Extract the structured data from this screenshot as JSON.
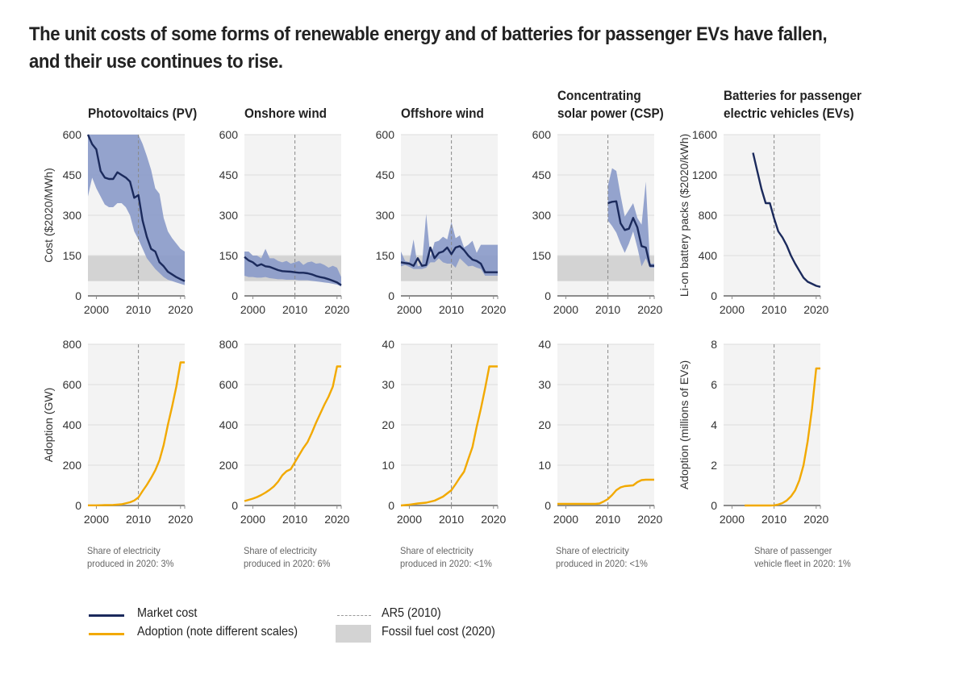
{
  "title_line1": "The unit costs of some forms of renewable energy and of batteries for passenger EVs have fallen,",
  "title_line2": "and their use continues to rise.",
  "colors": {
    "market_cost": "#1b2a5c",
    "market_cost_band": "#8a9ac9",
    "adoption": "#f2a900",
    "fossil_band": "#d3d3d3",
    "plot_bg": "#f3f3f3",
    "gridline": "#dcdcdc",
    "baseline": "#8c8c8c",
    "ar5_line": "#888888"
  },
  "legend": {
    "market_cost": "Market cost",
    "adoption": "Adoption (note different scales)",
    "ar5": "AR5 (2010)",
    "fossil": "Fossil fuel cost (2020)"
  },
  "chart_data": [
    {
      "id": "pv-cost",
      "type": "line",
      "panel": "Photovoltaics (PV)",
      "row": "cost",
      "title_lines": [
        "Photovoltaics (PV)"
      ],
      "ylabel": "Cost ($2020/MWh)",
      "ylim": [
        0,
        600
      ],
      "yticks": [
        0,
        150,
        300,
        450,
        600
      ],
      "xlim": [
        1998,
        2021
      ],
      "xticks": [
        2000,
        2010,
        2020
      ],
      "ar5_year": 2010,
      "fossil_band": [
        55,
        150
      ],
      "series": {
        "name": "Market cost",
        "x": [
          1998,
          1999,
          2000,
          2001,
          2002,
          2003,
          2004,
          2005,
          2006,
          2007,
          2008,
          2009,
          2010,
          2011,
          2012,
          2013,
          2014,
          2015,
          2016,
          2017,
          2018,
          2019,
          2020,
          2021
        ],
        "y": [
          600,
          565,
          545,
          465,
          440,
          435,
          435,
          460,
          450,
          440,
          425,
          365,
          375,
          280,
          220,
          175,
          165,
          125,
          110,
          90,
          80,
          70,
          62,
          55
        ]
      },
      "band": {
        "x": [
          1998,
          1999,
          2000,
          2001,
          2002,
          2003,
          2004,
          2005,
          2006,
          2007,
          2008,
          2009,
          2010,
          2011,
          2012,
          2013,
          2014,
          2015,
          2016,
          2017,
          2018,
          2019,
          2020,
          2021
        ],
        "low": [
          370,
          440,
          400,
          370,
          340,
          330,
          330,
          345,
          345,
          330,
          300,
          240,
          210,
          175,
          140,
          120,
          100,
          85,
          70,
          60,
          55,
          50,
          45,
          40
        ],
        "high": [
          600,
          600,
          600,
          600,
          600,
          600,
          600,
          600,
          600,
          600,
          600,
          600,
          600,
          565,
          520,
          470,
          400,
          380,
          290,
          240,
          215,
          195,
          175,
          165
        ]
      }
    },
    {
      "id": "onshore-cost",
      "type": "line",
      "panel": "Onshore wind",
      "row": "cost",
      "title_lines": [
        "Onshore wind"
      ],
      "ylabel": "",
      "ylim": [
        0,
        600
      ],
      "yticks": [
        0,
        150,
        300,
        450,
        600
      ],
      "xlim": [
        1998,
        2021
      ],
      "xticks": [
        2000,
        2010,
        2020
      ],
      "ar5_year": 2010,
      "fossil_band": [
        55,
        150
      ],
      "series": {
        "name": "Market cost",
        "x": [
          1998,
          1999,
          2000,
          2001,
          2002,
          2003,
          2004,
          2005,
          2006,
          2007,
          2008,
          2009,
          2010,
          2011,
          2012,
          2013,
          2014,
          2015,
          2016,
          2017,
          2018,
          2019,
          2020,
          2021
        ],
        "y": [
          145,
          132,
          125,
          112,
          118,
          110,
          108,
          102,
          96,
          92,
          91,
          90,
          88,
          86,
          86,
          84,
          80,
          74,
          70,
          67,
          62,
          56,
          50,
          40
        ]
      },
      "band": {
        "x": [
          1998,
          1999,
          2000,
          2001,
          2002,
          2003,
          2004,
          2005,
          2006,
          2007,
          2008,
          2009,
          2010,
          2011,
          2012,
          2013,
          2014,
          2015,
          2016,
          2017,
          2018,
          2019,
          2020,
          2021
        ],
        "low": [
          75,
          70,
          70,
          68,
          68,
          70,
          66,
          64,
          62,
          62,
          60,
          60,
          60,
          58,
          58,
          58,
          56,
          54,
          52,
          50,
          48,
          45,
          42,
          35
        ],
        "high": [
          165,
          165,
          150,
          150,
          140,
          175,
          140,
          140,
          130,
          125,
          130,
          120,
          125,
          130,
          115,
          125,
          128,
          120,
          122,
          115,
          105,
          112,
          105,
          70
        ]
      }
    },
    {
      "id": "offshore-cost",
      "type": "line",
      "panel": "Offshore wind",
      "row": "cost",
      "title_lines": [
        "Offshore wind"
      ],
      "ylabel": "",
      "ylim": [
        0,
        600
      ],
      "yticks": [
        0,
        150,
        300,
        450,
        600
      ],
      "xlim": [
        1998,
        2021
      ],
      "xticks": [
        2000,
        2010,
        2020
      ],
      "ar5_year": 2010,
      "fossil_band": [
        55,
        150
      ],
      "series": {
        "name": "Market cost",
        "x": [
          1998,
          1999,
          2000,
          2001,
          2002,
          2003,
          2004,
          2005,
          2006,
          2007,
          2008,
          2009,
          2010,
          2011,
          2012,
          2013,
          2014,
          2015,
          2016,
          2017,
          2018,
          2019,
          2020,
          2021
        ],
        "y": [
          125,
          122,
          120,
          112,
          140,
          112,
          115,
          180,
          140,
          160,
          165,
          180,
          155,
          180,
          185,
          170,
          150,
          135,
          130,
          120,
          88,
          88,
          88,
          88
        ]
      },
      "band": {
        "x": [
          1998,
          1999,
          2000,
          2001,
          2002,
          2003,
          2004,
          2005,
          2006,
          2007,
          2008,
          2009,
          2010,
          2011,
          2012,
          2013,
          2014,
          2015,
          2016,
          2017,
          2018,
          2019,
          2020,
          2021
        ],
        "low": [
          110,
          115,
          108,
          100,
          100,
          100,
          105,
          125,
          125,
          140,
          125,
          120,
          120,
          105,
          140,
          125,
          110,
          112,
          105,
          100,
          75,
          75,
          75,
          75
        ],
        "high": [
          165,
          130,
          125,
          210,
          110,
          115,
          305,
          145,
          200,
          205,
          220,
          210,
          275,
          215,
          225,
          180,
          190,
          205,
          160,
          190,
          190,
          190,
          190,
          190
        ]
      }
    },
    {
      "id": "csp-cost",
      "type": "line",
      "panel": "Concentrating solar power (CSP)",
      "row": "cost",
      "title_lines": [
        "Concentrating",
        "solar power (CSP)"
      ],
      "ylabel": "",
      "ylim": [
        0,
        600
      ],
      "yticks": [
        0,
        150,
        300,
        450,
        600
      ],
      "xlim": [
        1998,
        2021
      ],
      "xticks": [
        2000,
        2010,
        2020
      ],
      "ar5_year": 2010,
      "fossil_band": [
        55,
        150
      ],
      "series": {
        "name": "Market cost",
        "x": [
          2010,
          2011,
          2012,
          2013,
          2014,
          2015,
          2016,
          2017,
          2018,
          2019,
          2020,
          2021
        ],
        "y": [
          345,
          350,
          352,
          270,
          245,
          250,
          290,
          255,
          185,
          180,
          112,
          112
        ]
      },
      "band": {
        "x": [
          2010,
          2011,
          2012,
          2013,
          2014,
          2015,
          2016,
          2017,
          2018,
          2019,
          2020,
          2021
        ],
        "low": [
          280,
          260,
          235,
          195,
          160,
          195,
          240,
          180,
          110,
          140,
          105,
          105
        ],
        "high": [
          410,
          475,
          465,
          375,
          295,
          320,
          345,
          290,
          265,
          425,
          120,
          120
        ]
      }
    },
    {
      "id": "ev-cost",
      "type": "line",
      "panel": "Batteries for passenger electric vehicles (EVs)",
      "row": "cost",
      "title_lines": [
        "Batteries for passenger",
        "electric vehicles (EVs)"
      ],
      "ylabel": "Li-on battery packs ($2020/kWh)",
      "ylim": [
        0,
        1600
      ],
      "yticks": [
        0,
        400,
        800,
        1200,
        1600
      ],
      "xlim": [
        1998,
        2021
      ],
      "xticks": [
        2000,
        2010,
        2020
      ],
      "ar5_year": 2010,
      "fossil_band": null,
      "series": {
        "name": "Market cost",
        "x": [
          2005,
          2006,
          2007,
          2008,
          2009,
          2010,
          2011,
          2012,
          2013,
          2014,
          2015,
          2016,
          2017,
          2018,
          2019,
          2020,
          2021
        ],
        "y": [
          1420,
          1240,
          1060,
          920,
          920,
          770,
          640,
          580,
          500,
          400,
          320,
          250,
          180,
          140,
          120,
          100,
          90
        ]
      },
      "band": null
    },
    {
      "id": "pv-adoption",
      "type": "line",
      "panel": "Photovoltaics (PV)",
      "row": "adoption",
      "ylabel": "Adoption (GW)",
      "ylim": [
        0,
        800
      ],
      "yticks": [
        0,
        200,
        400,
        600,
        800
      ],
      "xlim": [
        1998,
        2021
      ],
      "xticks": [
        2000,
        2010,
        2020
      ],
      "ar5_year": 2010,
      "note": [
        "Share of electricity",
        "produced in 2020: 3%"
      ],
      "series": {
        "name": "Adoption",
        "x": [
          1998,
          2000,
          2002,
          2004,
          2006,
          2008,
          2009,
          2010,
          2011,
          2012,
          2013,
          2014,
          2015,
          2016,
          2017,
          2018,
          2019,
          2020,
          2021
        ],
        "y": [
          1,
          1,
          2,
          3,
          6,
          16,
          25,
          40,
          72,
          102,
          137,
          175,
          225,
          300,
          400,
          490,
          590,
          710,
          710
        ]
      }
    },
    {
      "id": "onshore-adoption",
      "type": "line",
      "panel": "Onshore wind",
      "row": "adoption",
      "ylabel": "",
      "ylim": [
        0,
        800
      ],
      "yticks": [
        0,
        200,
        400,
        600,
        800
      ],
      "xlim": [
        1998,
        2021
      ],
      "xticks": [
        2000,
        2010,
        2020
      ],
      "ar5_year": 2010,
      "note": [
        "Share of electricity",
        "produced in 2020: 6%"
      ],
      "series": {
        "name": "Adoption",
        "x": [
          1998,
          1999,
          2000,
          2001,
          2002,
          2003,
          2004,
          2005,
          2006,
          2007,
          2008,
          2009,
          2010,
          2011,
          2012,
          2013,
          2014,
          2015,
          2016,
          2017,
          2018,
          2019,
          2020,
          2021
        ],
        "y": [
          22,
          28,
          34,
          42,
          52,
          64,
          78,
          95,
          118,
          150,
          170,
          180,
          215,
          250,
          285,
          315,
          360,
          410,
          455,
          500,
          540,
          590,
          690,
          690
        ]
      }
    },
    {
      "id": "offshore-adoption",
      "type": "line",
      "panel": "Offshore wind",
      "row": "adoption",
      "ylabel": "",
      "ylim": [
        0,
        40
      ],
      "yticks": [
        0,
        10,
        20,
        30,
        40
      ],
      "xlim": [
        1998,
        2021
      ],
      "xticks": [
        2000,
        2010,
        2020
      ],
      "ar5_year": 2010,
      "note": [
        "Share of electricity",
        "produced in 2020: <1%"
      ],
      "series": {
        "name": "Adoption",
        "x": [
          1998,
          2000,
          2002,
          2004,
          2006,
          2008,
          2009,
          2010,
          2011,
          2012,
          2013,
          2014,
          2015,
          2016,
          2017,
          2018,
          2019,
          2020,
          2021
        ],
        "y": [
          0,
          0.2,
          0.5,
          0.7,
          1.2,
          2.2,
          3.0,
          3.8,
          5.3,
          6.9,
          8.4,
          11.5,
          14.5,
          19.5,
          24,
          29,
          34.5,
          34.5,
          34.5
        ]
      }
    },
    {
      "id": "csp-adoption",
      "type": "line",
      "panel": "Concentrating solar power (CSP)",
      "row": "adoption",
      "ylabel": "",
      "ylim": [
        0,
        40
      ],
      "yticks": [
        0,
        10,
        20,
        30,
        40
      ],
      "xlim": [
        1998,
        2021
      ],
      "xticks": [
        2000,
        2010,
        2020
      ],
      "ar5_year": 2010,
      "note": [
        "Share of electricity",
        "produced in 2020: <1%"
      ],
      "series": {
        "name": "Adoption",
        "x": [
          1998,
          2000,
          2002,
          2004,
          2006,
          2007,
          2008,
          2009,
          2010,
          2011,
          2012,
          2013,
          2014,
          2015,
          2016,
          2017,
          2018,
          2019,
          2020,
          2021
        ],
        "y": [
          0.4,
          0.4,
          0.4,
          0.4,
          0.4,
          0.4,
          0.5,
          1.0,
          1.6,
          2.6,
          3.8,
          4.5,
          4.8,
          4.9,
          5.0,
          5.8,
          6.3,
          6.4,
          6.4,
          6.4
        ]
      }
    },
    {
      "id": "ev-adoption",
      "type": "line",
      "panel": "Batteries for passenger electric vehicles (EVs)",
      "row": "adoption",
      "ylabel": "Adoption (millions of EVs)",
      "ylim": [
        0,
        8
      ],
      "yticks": [
        0,
        2,
        4,
        6,
        8
      ],
      "xlim": [
        1998,
        2021
      ],
      "xticks": [
        2000,
        2010,
        2020
      ],
      "ar5_year": 2010,
      "note": [
        "Share of passenger",
        "vehicle fleet in 2020: 1%"
      ],
      "series": {
        "name": "Adoption",
        "x": [
          2003,
          2006,
          2009,
          2010,
          2011,
          2012,
          2013,
          2014,
          2015,
          2016,
          2017,
          2018,
          2019,
          2020,
          2021
        ],
        "y": [
          0,
          0,
          0,
          0.01,
          0.05,
          0.12,
          0.25,
          0.45,
          0.75,
          1.25,
          2.0,
          3.2,
          4.8,
          6.8,
          6.8
        ]
      }
    }
  ]
}
